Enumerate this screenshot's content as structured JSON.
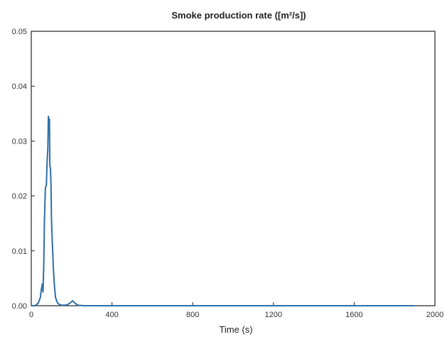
{
  "chart_data": {
    "type": "line",
    "title": "Smoke production rate ([m²/s])",
    "xlabel": "Time (s)",
    "ylabel": "",
    "xlim": [
      0,
      2000
    ],
    "ylim": [
      0,
      0.05
    ],
    "x_ticks": [
      0,
      400,
      800,
      1200,
      1600,
      2000
    ],
    "x_tick_labels": [
      "0",
      "400",
      "800",
      "1200",
      "1600",
      "2000"
    ],
    "y_ticks": [
      0,
      0.01,
      0.02,
      0.03,
      0.04,
      0.05
    ],
    "y_tick_labels": [
      "0.00",
      "0.01",
      "0.02",
      "0.03",
      "0.04",
      "0.05"
    ],
    "grid": false,
    "series": [
      {
        "color": "#2f6fa8",
        "x": [
          0,
          20,
          35,
          45,
          50,
          55,
          58,
          62,
          65,
          70,
          75,
          78,
          82,
          85,
          88,
          90,
          92,
          95,
          98,
          100,
          103,
          106,
          110,
          115,
          120,
          130,
          140,
          150,
          165,
          180,
          195,
          205,
          215,
          230,
          260,
          300,
          400,
          600,
          800,
          1000,
          1200,
          1400,
          1600,
          1800,
          1900
        ],
        "y": [
          0,
          0,
          0.0005,
          0.0015,
          0.003,
          0.004,
          0.0025,
          0.0075,
          0.0155,
          0.0215,
          0.022,
          0.026,
          0.0285,
          0.0345,
          0.0335,
          0.034,
          0.0255,
          0.025,
          0.022,
          0.016,
          0.0125,
          0.01,
          0.0065,
          0.0035,
          0.0015,
          0.0005,
          0.0002,
          0.0001,
          0.0001,
          0.0002,
          0.0006,
          0.0009,
          0.0005,
          0.0001,
          0,
          0,
          0,
          0,
          0,
          0,
          0,
          0,
          0,
          0,
          0
        ]
      }
    ]
  }
}
